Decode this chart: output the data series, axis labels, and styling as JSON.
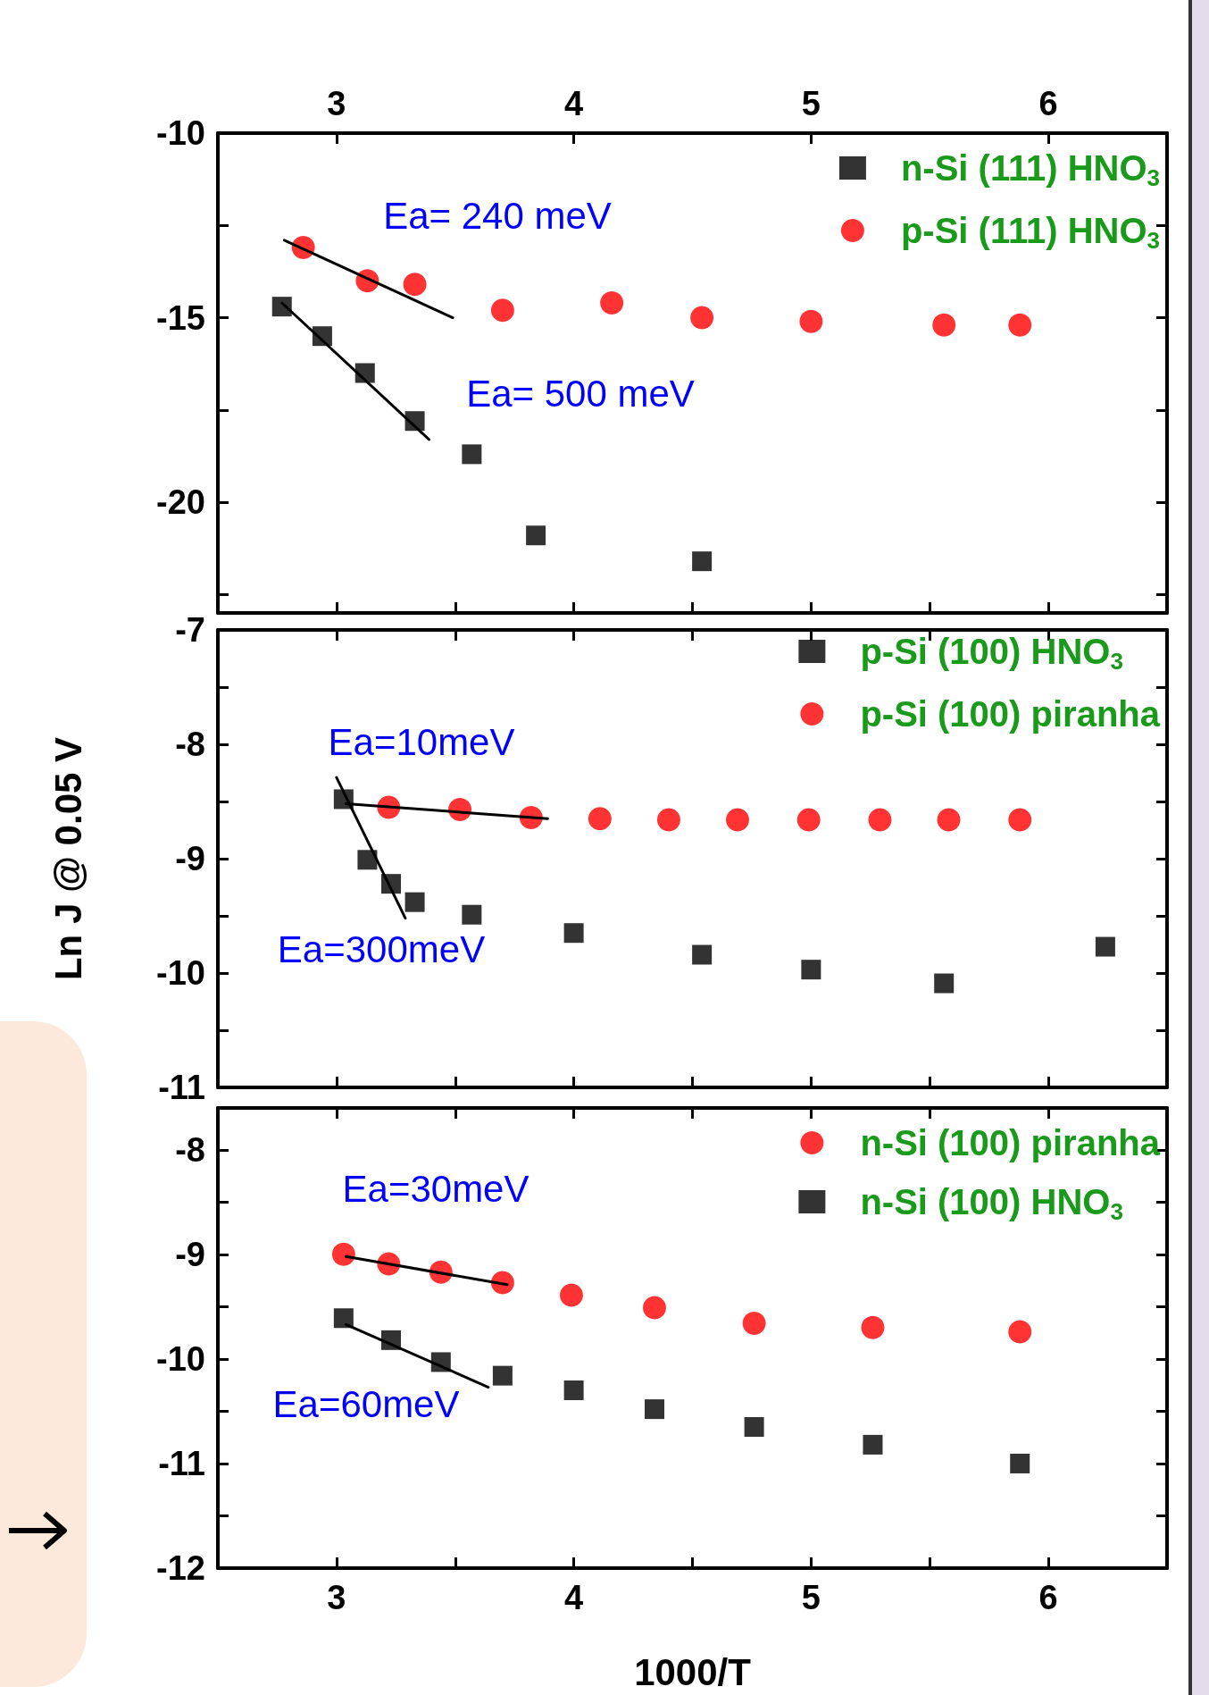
{
  "chart_data": [
    {
      "type": "scatter",
      "xlim": [
        2.5,
        6.5
      ],
      "xticks": [
        3,
        {
          "value": 3.5,
          "label": null
        },
        4,
        {
          "value": 4.5,
          "label": null
        },
        5,
        {
          "value": 5.5,
          "label": null
        },
        6
      ],
      "x2lim": [
        2.5,
        6.5
      ],
      "x2ticks": [
        3,
        4,
        5,
        6
      ],
      "ylim": [
        -23,
        -10
      ],
      "yticks": [
        -10,
        {
          "value": -12.5,
          "label": null
        },
        -15,
        {
          "value": -17.5,
          "label": null
        },
        -20,
        {
          "value": -22.5,
          "label": null
        }
      ],
      "tick_labels": "y",
      "legend": "top right",
      "series": [
        {
          "name": "n-Si (111) HNO$_{3}$",
          "marker": "square",
          "color": "#000000",
          "x": [
            2.77,
            2.94,
            3.12,
            3.33,
            3.57,
            3.84,
            4.54
          ],
          "values": [
            -14.7,
            -15.5,
            -16.5,
            -17.8,
            -18.7,
            -20.9,
            -21.6
          ]
        },
        {
          "name": "p-Si (111) HNO$_{3}$",
          "marker": "circle",
          "color": "#ff0000",
          "x": [
            2.86,
            3.13,
            3.33,
            3.7,
            4.16,
            4.54,
            5.0,
            5.56,
            5.88
          ],
          "values": [
            -13.1,
            -14.0,
            -14.1,
            -14.8,
            -14.6,
            -15.0,
            -15.1,
            -15.2,
            -15.2
          ]
        },
        {
          "type": "line",
          "marker": "none",
          "color": "#000000",
          "x": [
            2.78,
            3.49
          ],
          "values": [
            -12.9,
            -15.0
          ]
        },
        {
          "type": "line",
          "marker": "none",
          "color": "#000000",
          "x": [
            2.77,
            3.39
          ],
          "values": [
            -14.6,
            -18.3
          ]
        }
      ],
      "annotations": [
        "Ea= 240 meV",
        "Ea= 500 meV"
      ]
    },
    {
      "type": "scatter",
      "xlim": [
        2.5,
        6.5
      ],
      "xticks": [
        3,
        {
          "value": 3.5,
          "label": null
        },
        4,
        {
          "value": 4.5,
          "label": null
        },
        5,
        {
          "value": 5.5,
          "label": null
        },
        6
      ],
      "ylim": [
        -11,
        -7
      ],
      "yticks": [
        -7,
        {
          "value": -7.5,
          "label": null
        },
        -8,
        {
          "value": -8.5,
          "label": null
        },
        -9,
        {
          "value": -9.5,
          "label": null
        },
        -10,
        {
          "value": -10.5,
          "label": null
        },
        -11
      ],
      "tick_labels": "y",
      "legend": "top right",
      "ylabel": "Ln J @ 0.05 V",
      "series": [
        {
          "name": "p-Si (100) HNO$_{3}$",
          "marker": "square",
          "color": "#000000",
          "x": [
            3.03,
            3.13,
            3.23,
            3.33,
            3.57,
            4.0,
            4.54,
            5.0,
            5.56,
            6.24
          ],
          "values": [
            -8.48,
            -9.01,
            -9.22,
            -9.38,
            -9.49,
            -9.65,
            -9.84,
            -9.97,
            -10.09,
            -9.77
          ]
        },
        {
          "name": "p-Si (100) piranha",
          "marker": "circle",
          "color": "#ff0000",
          "x": [
            3.22,
            3.52,
            3.82,
            4.11,
            4.4,
            4.69,
            4.99,
            5.29,
            5.58,
            5.88
          ],
          "values": [
            -8.55,
            -8.57,
            -8.64,
            -8.65,
            -8.66,
            -8.66,
            -8.66,
            -8.66,
            -8.66,
            -8.66
          ]
        },
        {
          "type": "line",
          "marker": "none",
          "color": "#000000",
          "x": [
            3.04,
            3.89
          ],
          "values": [
            -8.52,
            -8.65
          ]
        },
        {
          "type": "line",
          "marker": "none",
          "color": "#000000",
          "x": [
            3.0,
            3.29
          ],
          "values": [
            -8.29,
            -9.52
          ]
        }
      ],
      "annotations": [
        "Ea=10meV",
        "Ea=300meV"
      ]
    },
    {
      "type": "scatter",
      "xlim": [
        2.5,
        6.5
      ],
      "xticks": [
        3,
        {
          "value": 3.5,
          "label": null
        },
        4,
        {
          "value": 4.5,
          "label": null
        },
        5,
        {
          "value": 5.5,
          "label": null
        },
        6
      ],
      "ylim": [
        -12,
        -7.6
      ],
      "yticks": [
        -8,
        {
          "value": -8.5,
          "label": null
        },
        -9,
        {
          "value": -9.5,
          "label": null
        },
        -10,
        {
          "value": -10.5,
          "label": null
        },
        -11,
        {
          "value": -11.5,
          "label": null
        },
        -12
      ],
      "legend": "top right",
      "xlabel": "1000/T",
      "series": [
        {
          "name": "n-Si (100) piranha",
          "marker": "circle",
          "color": "#ff0000",
          "x": [
            3.03,
            3.22,
            3.44,
            3.7,
            3.99,
            4.34,
            4.76,
            5.26,
            5.88
          ],
          "values": [
            -9.0,
            -9.09,
            -9.17,
            -9.27,
            -9.39,
            -9.51,
            -9.66,
            -9.7,
            -9.74
          ]
        },
        {
          "name": "n-Si (100) HNO$_{3}$",
          "marker": "square",
          "color": "#000000",
          "x": [
            3.03,
            3.23,
            3.44,
            3.7,
            4.0,
            4.34,
            4.76,
            5.26,
            5.88
          ],
          "values": [
            -9.61,
            -9.82,
            -10.03,
            -10.16,
            -10.3,
            -10.48,
            -10.65,
            -10.82,
            -11.0
          ]
        },
        {
          "type": "line",
          "marker": "none",
          "color": "#000000",
          "x": [
            3.04,
            3.72
          ],
          "values": [
            -9.02,
            -9.29
          ]
        },
        {
          "type": "line",
          "marker": "none",
          "color": "#000000",
          "x": [
            3.04,
            3.64
          ],
          "values": [
            -9.67,
            -10.27
          ]
        }
      ],
      "annotations": [
        "Ea=30meV",
        "Ea=60meV"
      ]
    }
  ]
}
